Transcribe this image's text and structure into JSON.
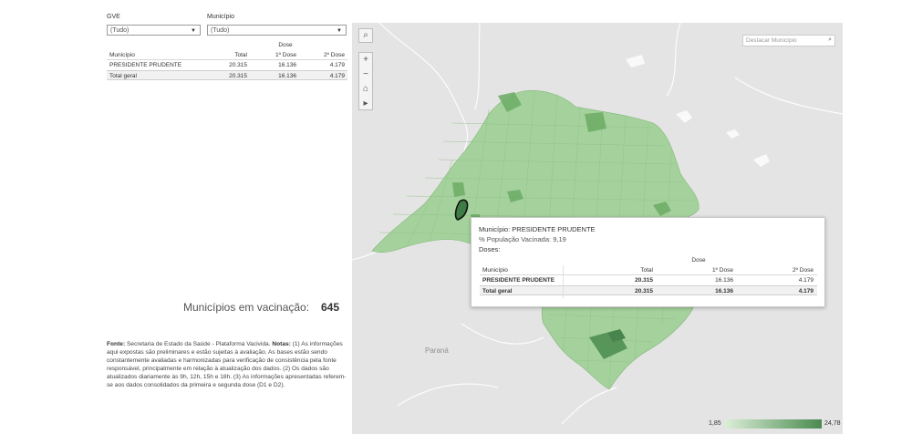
{
  "filters": {
    "gve": {
      "label": "GVE",
      "value": "(Tudo)"
    },
    "municipio": {
      "label": "Município",
      "value": "(Tudo)"
    }
  },
  "doses_table": {
    "group_header": "Dose",
    "columns": [
      "Município",
      "Total",
      "1º Dose",
      "2º Dose"
    ],
    "rows": [
      {
        "municipio": "PRESIDENTE PRUDENTE",
        "total": "20.315",
        "dose1": "16.136",
        "dose2": "4.179"
      }
    ],
    "total_row": {
      "label": "Total geral",
      "total": "20.315",
      "dose1": "16.136",
      "dose2": "4.179"
    }
  },
  "kpi": {
    "label": "Municípios em vacinação:",
    "value": "645"
  },
  "notes": {
    "fonte_label": "Fonte:",
    "fonte_text": "Secretaria de Estado da Saúde - Plataforma Vacivida.",
    "notas_label": "Notas:",
    "notas_text": "(1) As informações aqui expostas são preliminares e estão sujeitas à avaliação. As bases estão sendo constantemente avaliadas e harmonizadas para verificação de consistência pela fonte responsável, principalmente em relação à atualização dos dados. (2) Os dados são atualizados diariamente às 9h, 12h, 15h e 18h. (3) As informações apresentadas referem-se aos dados consolidados da primeira e segunda dose (D1 e D2)."
  },
  "map": {
    "search_placeholder": "Destacar Município",
    "region_label": "Paraná",
    "colors": {
      "low": "#dbeed7",
      "high": "#4a8a4f",
      "highlight_border": "#111111",
      "background": "#e4e4e4"
    },
    "icons": [
      "search-icon",
      "zoom-in-icon",
      "zoom-out-icon",
      "home-icon",
      "play-icon"
    ]
  },
  "tooltip": {
    "municipio_label": "Município:",
    "municipio_value": "PRESIDENTE PRUDENTE",
    "populacao_label": "% População Vacinada:",
    "populacao_value": "9,19",
    "doses_label": "Doses:",
    "group_header": "Dose",
    "columns": [
      "Município",
      "Total",
      "1º Dose",
      "2º Dose"
    ],
    "rows": [
      {
        "municipio": "PRESIDENTE PRUDENTE",
        "total": "20.315",
        "dose1": "16.136",
        "dose2": "4.179"
      }
    ],
    "total_row": {
      "label": "Total geral",
      "total": "20.315",
      "dose1": "16.136",
      "dose2": "4.179"
    }
  },
  "legend": {
    "min": "1,85",
    "max": "24,78"
  }
}
